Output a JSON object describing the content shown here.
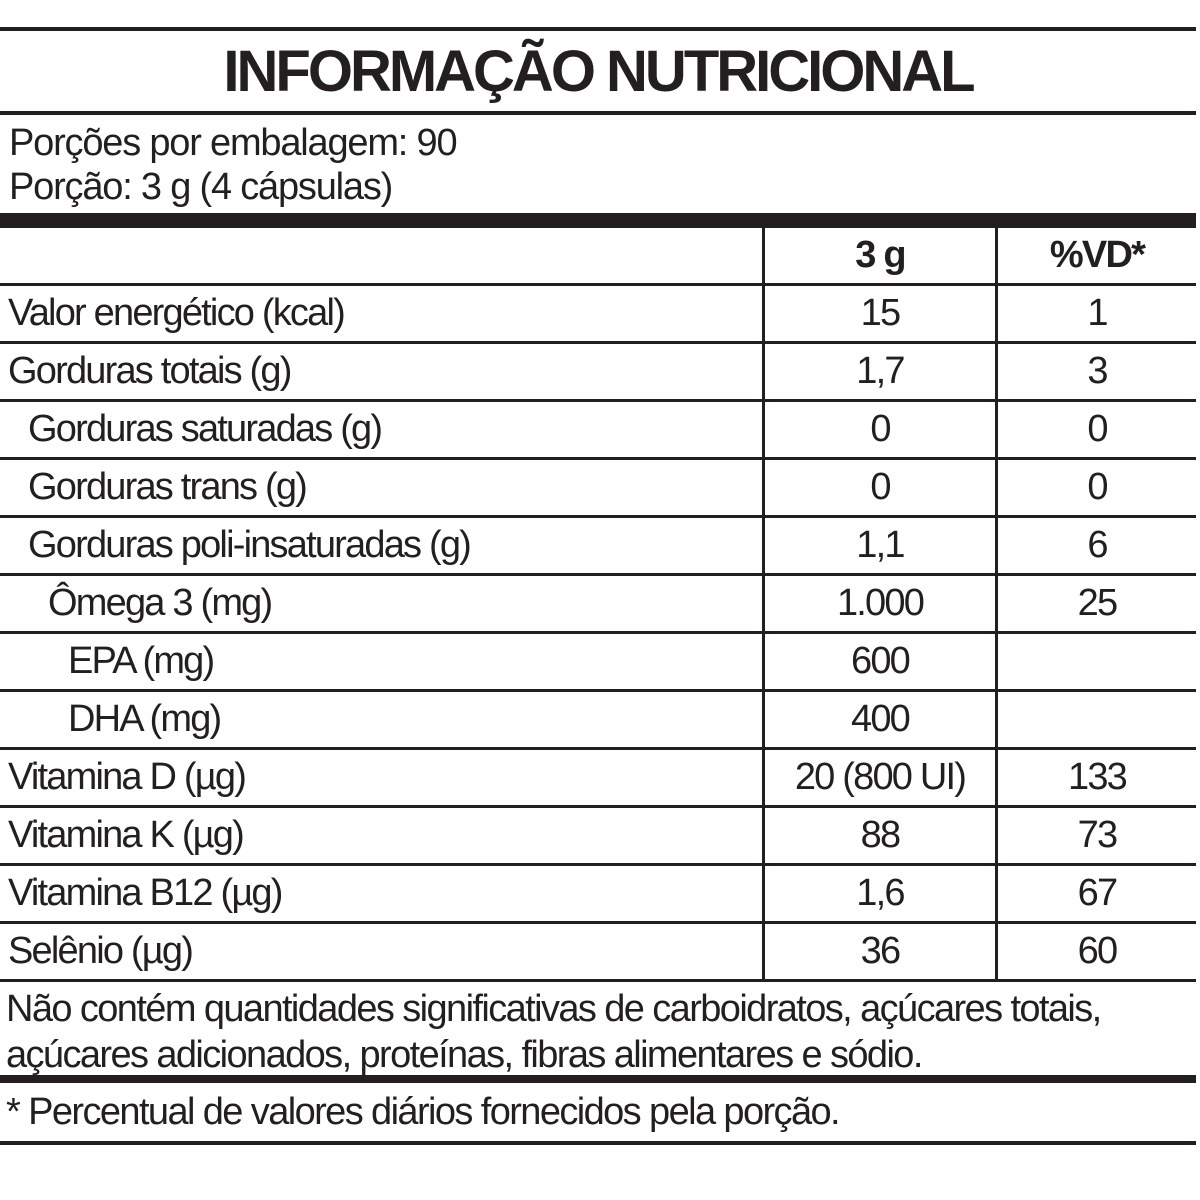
{
  "title": "INFORMAÇÃO NUTRICIONAL",
  "servings_per_package": "Porções por embalagem: 90",
  "serving_size": "Porção: 3 g (4 cápsulas)",
  "columns": [
    "",
    "3 g",
    "%VD*"
  ],
  "rows": [
    {
      "name": "Valor energético (kcal)",
      "amount": "15",
      "dv": "1",
      "indent": 0
    },
    {
      "name": "Gorduras totais (g)",
      "amount": "1,7",
      "dv": "3",
      "indent": 0
    },
    {
      "name": "Gorduras saturadas (g)",
      "amount": "0",
      "dv": "0",
      "indent": 1
    },
    {
      "name": "Gorduras trans (g)",
      "amount": "0",
      "dv": "0",
      "indent": 1
    },
    {
      "name": "Gorduras poli-insaturadas (g)",
      "amount": "1,1",
      "dv": "6",
      "indent": 1
    },
    {
      "name": "Ômega 3 (mg)",
      "amount": "1.000",
      "dv": "25",
      "indent": 2
    },
    {
      "name": "EPA (mg)",
      "amount": "600",
      "dv": "",
      "indent": 3
    },
    {
      "name": "DHA (mg)",
      "amount": "400",
      "dv": "",
      "indent": 3
    },
    {
      "name": "Vitamina D (µg)",
      "amount": "20 (800 UI)",
      "dv": "133",
      "indent": 0
    },
    {
      "name": "Vitamina K (µg)",
      "amount": "88",
      "dv": "73",
      "indent": 0
    },
    {
      "name": "Vitamina B12 (µg)",
      "amount": "1,6",
      "dv": "67",
      "indent": 0
    },
    {
      "name": "Selênio (µg)",
      "amount": "36",
      "dv": "60",
      "indent": 0
    }
  ],
  "note": "Não contém quantidades significativas de carboidratos, açúcares totais, açúcares adicionados, proteínas, fibras alimentares e sódio.",
  "footnote": "* Percentual de valores diários fornecidos pela porção."
}
